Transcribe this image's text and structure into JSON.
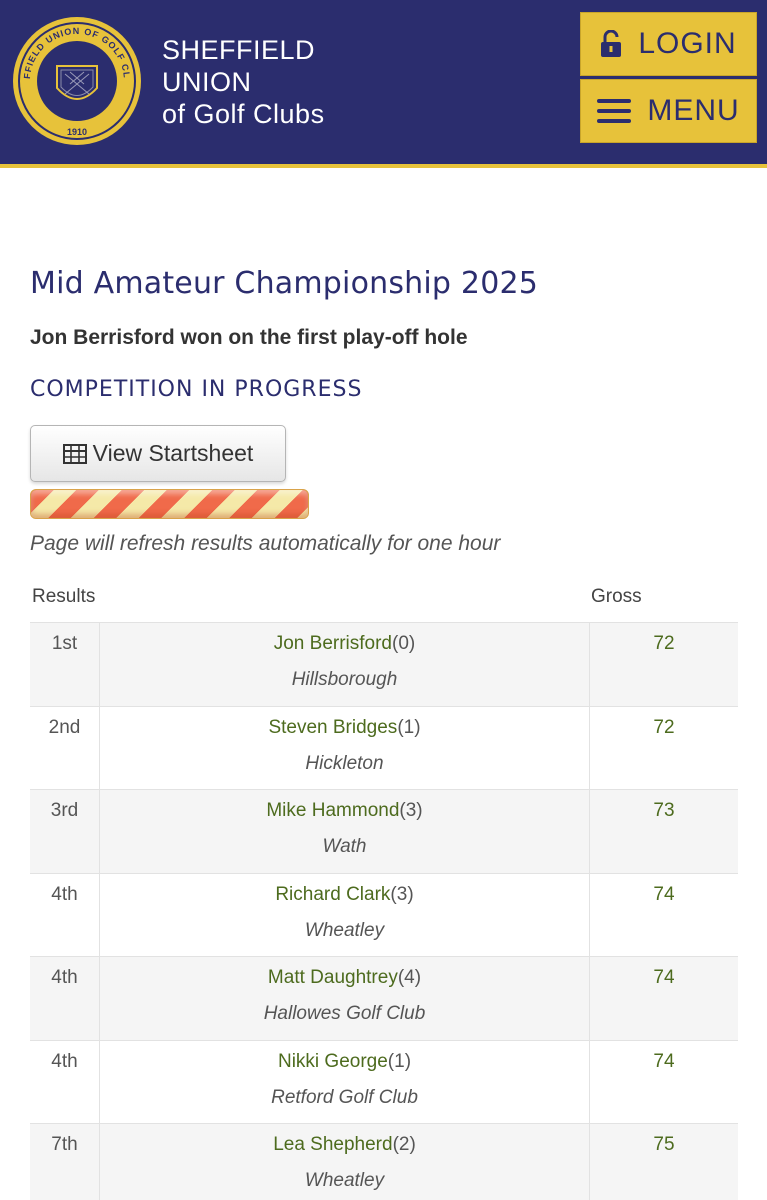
{
  "header": {
    "brand_line1": "SHEFFIELD",
    "brand_line2": "UNION",
    "brand_line3": "of Golf Clubs",
    "logo_text_top": "SHEFFIELD UNION OF GOLF CLUBS",
    "logo_text_year": "1910",
    "login_label": "LOGIN",
    "menu_label": "MENU",
    "login_icon": "unlock-icon",
    "menu_icon": "hamburger-icon"
  },
  "colors": {
    "header_bg": "#2b2d6e",
    "accent_gold": "#e7c23a",
    "link_green": "#4d6b1e"
  },
  "competition": {
    "title": "Mid Amateur Championship 2025",
    "subtitle": "Jon Berrisford won on the first play-off hole",
    "status": "COMPETITION IN PROGRESS",
    "startsheet_label": "View Startsheet",
    "startsheet_icon": "table-icon",
    "progress_fraction": 1.0,
    "refresh_note": "Page will refresh results automatically for one hour"
  },
  "results": {
    "col_results": "Results",
    "col_gross": "Gross",
    "rows": [
      {
        "pos": "1st",
        "name": "Jon Berrisford",
        "hcp": "(0)",
        "club": "Hillsborough",
        "gross": "72"
      },
      {
        "pos": "2nd",
        "name": "Steven Bridges",
        "hcp": "(1)",
        "club": "Hickleton",
        "gross": "72"
      },
      {
        "pos": "3rd",
        "name": "Mike Hammond",
        "hcp": "(3)",
        "club": "Wath",
        "gross": "73"
      },
      {
        "pos": "4th",
        "name": "Richard Clark",
        "hcp": "(3)",
        "club": "Wheatley",
        "gross": "74"
      },
      {
        "pos": "4th",
        "name": "Matt Daughtrey",
        "hcp": "(4)",
        "club": "Hallowes Golf Club",
        "gross": "74"
      },
      {
        "pos": "4th",
        "name": "Nikki George",
        "hcp": "(1)",
        "club": "Retford Golf Club",
        "gross": "74"
      },
      {
        "pos": "7th",
        "name": "Lea Shepherd",
        "hcp": "(2)",
        "club": "Wheatley",
        "gross": "75"
      }
    ]
  }
}
